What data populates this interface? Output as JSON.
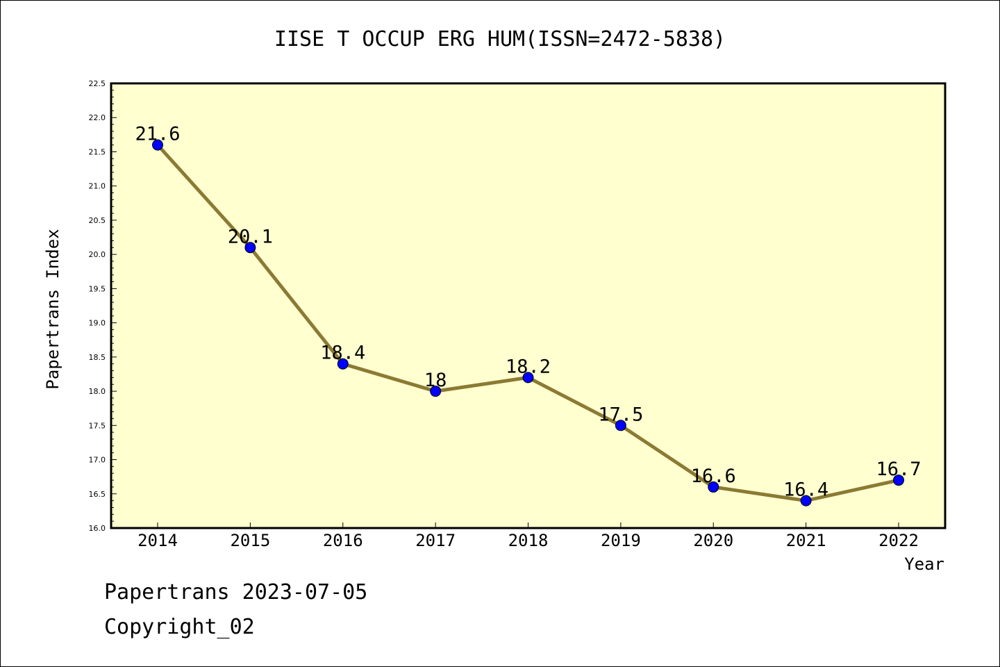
{
  "chart_data": {
    "type": "line",
    "title": "IISE T OCCUP ERG HUM(ISSN=2472-5838)",
    "xlabel": "Year",
    "ylabel": "Papertrans Index",
    "x": [
      "2014",
      "2015",
      "2016",
      "2017",
      "2018",
      "2019",
      "2020",
      "2021",
      "2022"
    ],
    "series": [
      {
        "values": [
          21.6,
          20.1,
          18.4,
          18.0,
          18.2,
          17.5,
          16.6,
          16.4,
          16.7
        ]
      }
    ],
    "data_labels": [
      "21.6",
      "20.1",
      "18.4",
      "18",
      "18.2",
      "17.5",
      "16.6",
      "16.4",
      "16.7"
    ],
    "ylim": [
      16.0,
      22.5
    ],
    "yticks": [
      "16.0",
      "16.5",
      "17.0",
      "17.5",
      "18.0",
      "18.5",
      "19.0",
      "19.5",
      "20.0",
      "20.5",
      "21.0",
      "21.5",
      "22.0",
      "22.5"
    ],
    "grid": false,
    "legend": "none",
    "colors": {
      "plot_background": "#ffffd0",
      "line": "#8b7a33",
      "marker": "#0000ff"
    }
  },
  "footer": {
    "line1": "Papertrans 2023-07-05",
    "line2": "Copyright_02"
  }
}
